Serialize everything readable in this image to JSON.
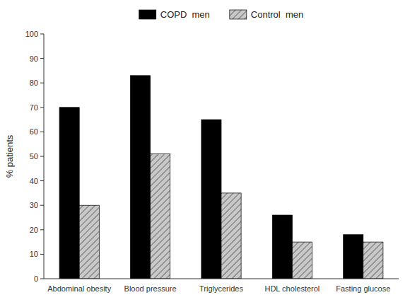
{
  "chart_data": {
    "type": "bar",
    "ylabel": "% patients",
    "categories": [
      "Abdominal obesity",
      "Blood pressure",
      "Triglycerides",
      "HDL cholesterol",
      "Fasting glucose"
    ],
    "series": [
      {
        "name": "COPD  men",
        "color": "#000000",
        "values": [
          70,
          83,
          65,
          26,
          18
        ]
      },
      {
        "name": "Control  men",
        "color": "#c8c8c8",
        "values": [
          30,
          51,
          35,
          15,
          15
        ]
      }
    ],
    "ylim": [
      0,
      100
    ],
    "yticks": [
      0,
      10,
      20,
      30,
      40,
      50,
      60,
      70,
      80,
      90,
      100
    ],
    "grid": false,
    "legend": "top"
  }
}
